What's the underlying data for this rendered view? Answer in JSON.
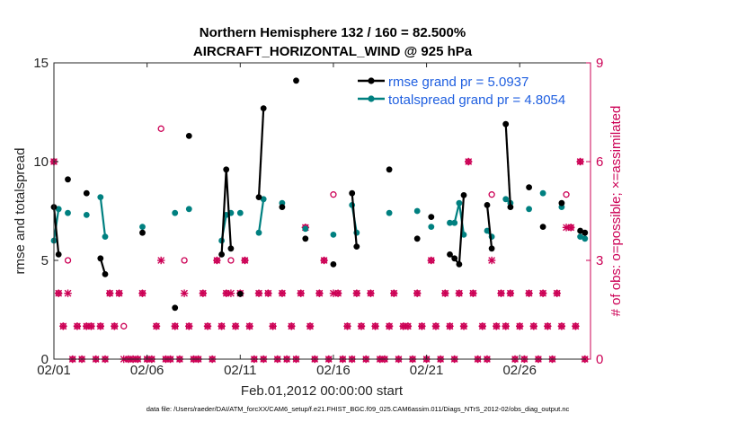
{
  "chart_data": {
    "type": "line",
    "title_line1": "Northern Hemisphere 132 / 160 = 82.500%",
    "title_line2": "AIRCRAFT_HORIZONTAL_WIND @ 925 hPa",
    "xlabel": "Feb.01,2012 00:00:00 start",
    "ylabel": "rmse and totalspread",
    "y2label": "# of obs: o=possible; ×=assimilated",
    "footnote": "data file: /Users/raeder/DAI/ATM_forcXX/CAM6_setup/f.e21.FHIST_BGC.f09_025.CAM6assim.011/Diags_NTrS_2012-02/obs_diag_output.nc",
    "xlim": [
      1,
      29.8
    ],
    "ylim": [
      0,
      15
    ],
    "y2lim": [
      0,
      9
    ],
    "xticks": [
      1,
      6,
      11,
      16,
      21,
      26
    ],
    "xtick_labels": [
      "02/01",
      "02/06",
      "02/11",
      "02/16",
      "02/21",
      "02/26"
    ],
    "yticks": [
      0,
      5,
      10,
      15
    ],
    "ytick_labels": [
      "0",
      "5",
      "10",
      "15"
    ],
    "y2ticks": [
      0,
      3,
      6,
      9
    ],
    "y2tick_labels": [
      "0",
      "3",
      "6",
      "9"
    ],
    "legend_location": "top-right",
    "colors": {
      "rmse": "#000000",
      "spread": "#008080",
      "obs": "#cc0055",
      "legend_text": "#1f5fe0",
      "axis": "#262626"
    },
    "series": [
      {
        "name": "rmse grand pr = 5.0937",
        "key": "rmse",
        "points": [
          [
            1.0,
            7.7
          ],
          [
            1.25,
            5.3
          ],
          [
            1.5,
            null
          ],
          [
            1.75,
            9.1
          ],
          [
            2.0,
            null
          ],
          [
            2.75,
            8.4
          ],
          [
            3.0,
            null
          ],
          [
            3.5,
            5.1
          ],
          [
            3.75,
            4.3
          ],
          [
            4.0,
            null
          ],
          [
            5.75,
            6.4
          ],
          [
            6.0,
            null
          ],
          [
            7.5,
            2.6
          ],
          [
            7.75,
            null
          ],
          [
            8.25,
            11.3
          ],
          [
            8.5,
            null
          ],
          [
            10.0,
            5.3
          ],
          [
            10.25,
            9.6
          ],
          [
            10.5,
            5.6
          ],
          [
            10.75,
            null
          ],
          [
            11.0,
            3.3
          ],
          [
            11.25,
            null
          ],
          [
            12.0,
            8.2
          ],
          [
            12.25,
            12.7
          ],
          [
            12.5,
            null
          ],
          [
            13.25,
            7.7
          ],
          [
            13.5,
            null
          ],
          [
            14.0,
            14.1
          ],
          [
            14.25,
            null
          ],
          [
            14.5,
            6.1
          ],
          [
            14.75,
            null
          ],
          [
            16.0,
            4.8
          ],
          [
            16.25,
            null
          ],
          [
            17.0,
            8.4
          ],
          [
            17.25,
            5.7
          ],
          [
            17.5,
            null
          ],
          [
            19.0,
            9.6
          ],
          [
            19.25,
            null
          ],
          [
            20.5,
            6.1
          ],
          [
            20.75,
            null
          ],
          [
            21.25,
            7.2
          ],
          [
            21.5,
            null
          ],
          [
            22.25,
            5.3
          ],
          [
            22.5,
            5.1
          ],
          [
            22.75,
            4.8
          ],
          [
            23.0,
            8.3
          ],
          [
            23.25,
            null
          ],
          [
            24.25,
            7.8
          ],
          [
            24.5,
            5.6
          ],
          [
            24.75,
            null
          ],
          [
            25.25,
            11.9
          ],
          [
            25.5,
            7.7
          ],
          [
            25.75,
            null
          ],
          [
            26.5,
            8.7
          ],
          [
            26.75,
            null
          ],
          [
            27.25,
            6.7
          ],
          [
            27.5,
            null
          ],
          [
            28.25,
            7.9
          ],
          [
            28.5,
            null
          ],
          [
            29.25,
            6.5
          ],
          [
            29.5,
            6.4
          ]
        ]
      },
      {
        "name": "totalspread grand pr = 4.8054",
        "key": "spread",
        "points": [
          [
            1.0,
            6.0
          ],
          [
            1.25,
            7.6
          ],
          [
            1.5,
            null
          ],
          [
            1.75,
            7.4
          ],
          [
            2.0,
            null
          ],
          [
            2.75,
            7.3
          ],
          [
            3.0,
            null
          ],
          [
            3.5,
            8.2
          ],
          [
            3.75,
            6.2
          ],
          [
            4.0,
            null
          ],
          [
            5.75,
            6.7
          ],
          [
            6.0,
            null
          ],
          [
            7.5,
            7.4
          ],
          [
            7.75,
            null
          ],
          [
            8.25,
            7.6
          ],
          [
            8.5,
            null
          ],
          [
            10.0,
            6.0
          ],
          [
            10.25,
            7.3
          ],
          [
            10.5,
            7.4
          ],
          [
            10.75,
            null
          ],
          [
            11.0,
            7.4
          ],
          [
            11.25,
            null
          ],
          [
            12.0,
            6.4
          ],
          [
            12.25,
            8.1
          ],
          [
            12.5,
            null
          ],
          [
            13.25,
            7.9
          ],
          [
            13.5,
            null
          ],
          [
            14.5,
            6.6
          ],
          [
            14.75,
            null
          ],
          [
            16.0,
            6.3
          ],
          [
            16.25,
            null
          ],
          [
            17.0,
            7.8
          ],
          [
            17.25,
            6.4
          ],
          [
            17.5,
            null
          ],
          [
            19.0,
            7.4
          ],
          [
            19.25,
            null
          ],
          [
            20.5,
            7.5
          ],
          [
            20.75,
            null
          ],
          [
            21.25,
            6.7
          ],
          [
            21.5,
            null
          ],
          [
            22.25,
            6.9
          ],
          [
            22.5,
            6.9
          ],
          [
            22.75,
            7.9
          ],
          [
            23.0,
            6.3
          ],
          [
            23.25,
            null
          ],
          [
            24.25,
            6.5
          ],
          [
            24.5,
            6.2
          ],
          [
            24.75,
            null
          ],
          [
            25.25,
            8.1
          ],
          [
            25.5,
            7.9
          ],
          [
            25.75,
            null
          ],
          [
            26.5,
            7.6
          ],
          [
            26.75,
            null
          ],
          [
            27.25,
            8.4
          ],
          [
            27.5,
            null
          ],
          [
            28.25,
            7.7
          ],
          [
            28.5,
            null
          ],
          [
            29.25,
            6.2
          ],
          [
            29.5,
            6.1
          ]
        ]
      }
    ],
    "obs_possible": [
      [
        1.0,
        6
      ],
      [
        1.25,
        2
      ],
      [
        1.5,
        1
      ],
      [
        1.75,
        3
      ],
      [
        2.0,
        0
      ],
      [
        2.25,
        1
      ],
      [
        2.5,
        0
      ],
      [
        2.75,
        1
      ],
      [
        3.0,
        1
      ],
      [
        3.25,
        0
      ],
      [
        3.5,
        1
      ],
      [
        3.75,
        0
      ],
      [
        4.0,
        2
      ],
      [
        4.25,
        1
      ],
      [
        4.5,
        2
      ],
      [
        4.75,
        1
      ],
      [
        5.0,
        0
      ],
      [
        5.25,
        0
      ],
      [
        5.5,
        0
      ],
      [
        5.75,
        2
      ],
      [
        6.0,
        0
      ],
      [
        6.25,
        0
      ],
      [
        6.5,
        1
      ],
      [
        6.75,
        7
      ],
      [
        7.0,
        0
      ],
      [
        7.25,
        0
      ],
      [
        7.5,
        1
      ],
      [
        7.75,
        0
      ],
      [
        8.0,
        3
      ],
      [
        8.25,
        1
      ],
      [
        8.5,
        0
      ],
      [
        8.75,
        0
      ],
      [
        9.0,
        2
      ],
      [
        9.25,
        1
      ],
      [
        9.5,
        0
      ],
      [
        9.75,
        3
      ],
      [
        10.0,
        1
      ],
      [
        10.25,
        2
      ],
      [
        10.5,
        3
      ],
      [
        10.75,
        1
      ],
      [
        11.0,
        2
      ],
      [
        11.25,
        3
      ],
      [
        11.5,
        1
      ],
      [
        11.75,
        0
      ],
      [
        12.0,
        2
      ],
      [
        12.25,
        0
      ],
      [
        12.5,
        2
      ],
      [
        12.75,
        1
      ],
      [
        13.0,
        0
      ],
      [
        13.25,
        2
      ],
      [
        13.5,
        0
      ],
      [
        13.75,
        1
      ],
      [
        14.0,
        0
      ],
      [
        14.25,
        2
      ],
      [
        14.5,
        4
      ],
      [
        14.75,
        1
      ],
      [
        15.0,
        0
      ],
      [
        15.25,
        2
      ],
      [
        15.5,
        3
      ],
      [
        15.75,
        0
      ],
      [
        16.0,
        5
      ],
      [
        16.25,
        2
      ],
      [
        16.5,
        0
      ],
      [
        16.75,
        1
      ],
      [
        17.0,
        0
      ],
      [
        17.25,
        2
      ],
      [
        17.5,
        1
      ],
      [
        17.75,
        0
      ],
      [
        18.0,
        2
      ],
      [
        18.25,
        1
      ],
      [
        18.5,
        0
      ],
      [
        18.75,
        0
      ],
      [
        19.0,
        1
      ],
      [
        19.25,
        2
      ],
      [
        19.5,
        0
      ],
      [
        19.75,
        1
      ],
      [
        20.0,
        1
      ],
      [
        20.25,
        0
      ],
      [
        20.5,
        2
      ],
      [
        20.75,
        1
      ],
      [
        21.0,
        0
      ],
      [
        21.25,
        3
      ],
      [
        21.5,
        1
      ],
      [
        21.75,
        0
      ],
      [
        22.0,
        2
      ],
      [
        22.25,
        1
      ],
      [
        22.5,
        0
      ],
      [
        22.75,
        2
      ],
      [
        23.0,
        1
      ],
      [
        23.25,
        6
      ],
      [
        23.5,
        2
      ],
      [
        23.75,
        0
      ],
      [
        24.0,
        1
      ],
      [
        24.25,
        0
      ],
      [
        24.5,
        5
      ],
      [
        24.75,
        1
      ],
      [
        25.0,
        2
      ],
      [
        25.25,
        1
      ],
      [
        25.5,
        2
      ],
      [
        25.75,
        0
      ],
      [
        26.0,
        1
      ],
      [
        26.25,
        0
      ],
      [
        26.5,
        2
      ],
      [
        26.75,
        1
      ],
      [
        27.0,
        0
      ],
      [
        27.25,
        2
      ],
      [
        27.5,
        1
      ],
      [
        27.75,
        0
      ],
      [
        28.0,
        2
      ],
      [
        28.25,
        1
      ],
      [
        28.5,
        5
      ],
      [
        28.75,
        4
      ],
      [
        29.0,
        1
      ],
      [
        29.25,
        6
      ],
      [
        29.5,
        0
      ]
    ],
    "obs_assimilated": [
      [
        1.0,
        6
      ],
      [
        1.25,
        2
      ],
      [
        1.5,
        1
      ],
      [
        1.75,
        2
      ],
      [
        2.0,
        0
      ],
      [
        2.25,
        1
      ],
      [
        2.5,
        0
      ],
      [
        2.75,
        1
      ],
      [
        3.0,
        1
      ],
      [
        3.25,
        0
      ],
      [
        3.5,
        1
      ],
      [
        3.75,
        0
      ],
      [
        4.0,
        2
      ],
      [
        4.25,
        1
      ],
      [
        4.5,
        2
      ],
      [
        4.75,
        0
      ],
      [
        5.0,
        0
      ],
      [
        5.25,
        0
      ],
      [
        5.5,
        0
      ],
      [
        5.75,
        2
      ],
      [
        6.0,
        0
      ],
      [
        6.25,
        0
      ],
      [
        6.5,
        1
      ],
      [
        6.75,
        3
      ],
      [
        7.0,
        0
      ],
      [
        7.25,
        0
      ],
      [
        7.5,
        1
      ],
      [
        7.75,
        0
      ],
      [
        8.0,
        2
      ],
      [
        8.25,
        1
      ],
      [
        8.5,
        0
      ],
      [
        8.75,
        0
      ],
      [
        9.0,
        2
      ],
      [
        9.25,
        1
      ],
      [
        9.5,
        0
      ],
      [
        9.75,
        3
      ],
      [
        10.0,
        1
      ],
      [
        10.25,
        2
      ],
      [
        10.5,
        2
      ],
      [
        10.75,
        1
      ],
      [
        11.0,
        2
      ],
      [
        11.25,
        3
      ],
      [
        11.5,
        1
      ],
      [
        11.75,
        0
      ],
      [
        12.0,
        2
      ],
      [
        12.25,
        0
      ],
      [
        12.5,
        2
      ],
      [
        12.75,
        1
      ],
      [
        13.0,
        0
      ],
      [
        13.25,
        2
      ],
      [
        13.5,
        0
      ],
      [
        13.75,
        1
      ],
      [
        14.0,
        0
      ],
      [
        14.25,
        2
      ],
      [
        14.5,
        4
      ],
      [
        14.75,
        1
      ],
      [
        15.0,
        0
      ],
      [
        15.25,
        2
      ],
      [
        15.5,
        3
      ],
      [
        15.75,
        0
      ],
      [
        16.0,
        2
      ],
      [
        16.25,
        2
      ],
      [
        16.5,
        0
      ],
      [
        16.75,
        1
      ],
      [
        17.0,
        0
      ],
      [
        17.25,
        2
      ],
      [
        17.5,
        1
      ],
      [
        17.75,
        0
      ],
      [
        18.0,
        2
      ],
      [
        18.25,
        1
      ],
      [
        18.5,
        0
      ],
      [
        18.75,
        0
      ],
      [
        19.0,
        1
      ],
      [
        19.25,
        2
      ],
      [
        19.5,
        0
      ],
      [
        19.75,
        1
      ],
      [
        20.0,
        1
      ],
      [
        20.25,
        0
      ],
      [
        20.5,
        2
      ],
      [
        20.75,
        1
      ],
      [
        21.0,
        0
      ],
      [
        21.25,
        3
      ],
      [
        21.5,
        1
      ],
      [
        21.75,
        0
      ],
      [
        22.0,
        2
      ],
      [
        22.25,
        1
      ],
      [
        22.5,
        0
      ],
      [
        22.75,
        2
      ],
      [
        23.0,
        1
      ],
      [
        23.25,
        6
      ],
      [
        23.5,
        2
      ],
      [
        23.75,
        0
      ],
      [
        24.0,
        1
      ],
      [
        24.25,
        0
      ],
      [
        24.5,
        3
      ],
      [
        24.75,
        1
      ],
      [
        25.0,
        2
      ],
      [
        25.25,
        1
      ],
      [
        25.5,
        2
      ],
      [
        25.75,
        0
      ],
      [
        26.0,
        1
      ],
      [
        26.25,
        0
      ],
      [
        26.5,
        2
      ],
      [
        26.75,
        1
      ],
      [
        27.0,
        0
      ],
      [
        27.25,
        2
      ],
      [
        27.5,
        1
      ],
      [
        27.75,
        0
      ],
      [
        28.0,
        2
      ],
      [
        28.25,
        1
      ],
      [
        28.5,
        4
      ],
      [
        28.75,
        4
      ],
      [
        29.0,
        1
      ],
      [
        29.25,
        6
      ],
      [
        29.5,
        0
      ]
    ]
  }
}
